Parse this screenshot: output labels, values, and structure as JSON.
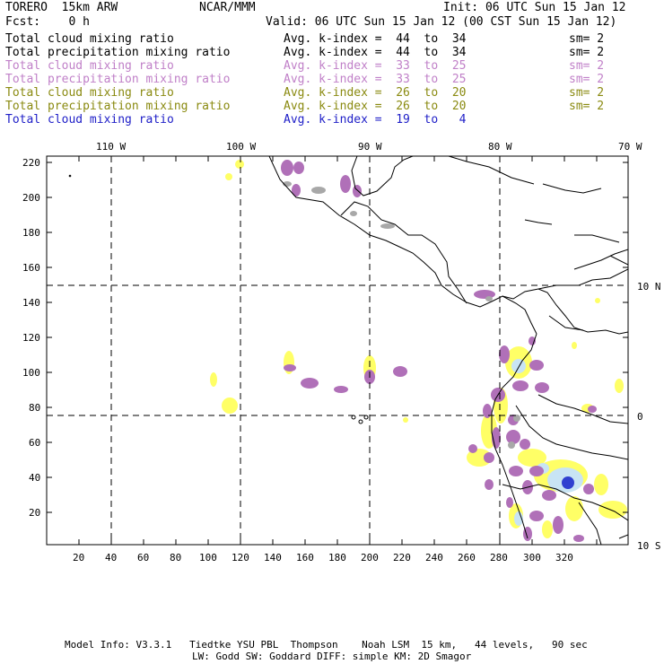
{
  "header": {
    "model": "TORERO  15km ARW",
    "org": "NCAR/MMM",
    "fcst": "Fcst:    0 h",
    "init": "Init: 06 UTC Sun 15 Jan 12",
    "valid": "Valid: 06 UTC Sun 15 Jan 12 (00 CST Sun 15 Jan 12)"
  },
  "legend": [
    {
      "field": "Total cloud mixing ratio",
      "kindex": "Avg. k-index =  44  to  34",
      "sm": "sm= 2",
      "color": "#000000"
    },
    {
      "field": "Total precipitation mixing ratio",
      "kindex": "Avg. k-index =  44  to  34",
      "sm": "sm= 2",
      "color": "#000000"
    },
    {
      "field": "Total cloud mixing ratio",
      "kindex": "Avg. k-index =  33  to  25",
      "sm": "sm= 2",
      "color": "#c080c8"
    },
    {
      "field": "Total precipitation mixing ratio",
      "kindex": "Avg. k-index =  33  to  25",
      "sm": "sm= 2",
      "color": "#c080c8"
    },
    {
      "field": "Total cloud mixing ratio",
      "kindex": "Avg. k-index =  26  to  20",
      "sm": "sm= 2",
      "color": "#8a8a10"
    },
    {
      "field": "Total precipitation mixing ratio",
      "kindex": "Avg. k-index =  26  to  20",
      "sm": "sm= 2",
      "color": "#8a8a10"
    },
    {
      "field": "Total cloud mixing ratio",
      "kindex": "Avg. k-index =  19  to   4",
      "sm": "",
      "color": "#2020c8"
    }
  ],
  "axes": {
    "lon_labels": [
      "110 W",
      "100 W",
      "90 W",
      "80 W",
      "70 W"
    ],
    "lat_labels": [
      "10 N",
      "0",
      "10 S"
    ],
    "x_ticks": [
      "20",
      "40",
      "60",
      "80",
      "100",
      "120",
      "140",
      "160",
      "180",
      "200",
      "220",
      "240",
      "260",
      "280",
      "300",
      "320"
    ],
    "y_ticks": [
      "220",
      "200",
      "180",
      "160",
      "140",
      "120",
      "100",
      "80",
      "60",
      "40",
      "20"
    ]
  },
  "footer": {
    "line1": "Model Info: V3.3.1   Tiedtke YSU PBL  Thompson    Noah LSM  15 km,   44 levels,   90 sec",
    "line2": "LW: Godd SW: Goddard DIFF: simple KM: 2D Smagor"
  },
  "colors": {
    "gray": "#a8a8a8",
    "purple": "#b070b8",
    "yellow": "#ffff66",
    "lightblue": "#c8e4f4",
    "blue": "#3040d0"
  }
}
